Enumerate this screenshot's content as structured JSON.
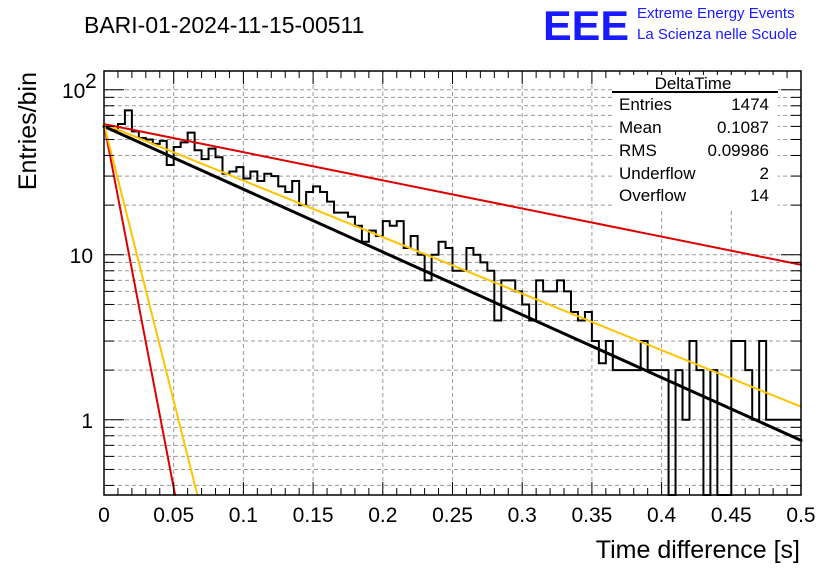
{
  "chart_data": {
    "type": "histogram",
    "title": "BARI-01-2024-11-15-00511",
    "xlabel": "Time difference [s]",
    "ylabel": "Entries/bin",
    "xlim": [
      0,
      0.5
    ],
    "ylim": [
      0.35,
      130
    ],
    "yscale": "log",
    "grid": true,
    "x_ticks": [
      "0",
      "0.05",
      "0.1",
      "0.15",
      "0.2",
      "0.25",
      "0.3",
      "0.35",
      "0.4",
      "0.45",
      "0.5"
    ],
    "y_ticks": [
      {
        "value": 1,
        "label": "1"
      },
      {
        "value": 10,
        "label": "10"
      },
      {
        "value": 100,
        "label": "10",
        "exponent": "2"
      }
    ],
    "bin_width": 0.005,
    "histogram": {
      "name": "DeltaTime",
      "color": "#000000",
      "values": [
        60,
        57,
        62,
        75,
        56,
        51,
        50,
        47,
        49,
        35,
        45,
        48,
        55,
        43,
        38,
        44,
        39,
        31,
        32,
        34,
        29,
        32,
        28,
        31,
        30,
        26,
        24,
        28,
        20,
        24,
        26,
        24,
        21,
        18,
        18,
        17,
        15,
        12,
        14,
        13,
        16,
        15,
        16,
        11,
        13,
        10,
        7,
        10,
        12,
        11,
        8,
        8,
        11,
        10,
        9,
        8,
        4,
        7,
        7,
        6,
        5,
        4,
        7,
        6,
        6,
        7,
        6,
        4.5,
        4,
        4.5,
        3,
        2.2,
        3,
        2,
        2,
        2,
        2,
        3,
        2,
        2,
        2,
        0.3,
        2,
        1,
        3,
        2,
        0.3,
        2,
        0.3,
        0.3,
        3,
        3,
        2,
        1,
        3,
        1,
        1,
        1,
        1,
        1
      ]
    },
    "fits": [
      {
        "name": "black-fit",
        "color": "#000000",
        "y0": 60,
        "y_end": 0.75,
        "x_end": 0.5,
        "width": 3
      },
      {
        "name": "yellow-fit-slow",
        "color": "#ffc400",
        "y0": 62,
        "y_end": 1.2,
        "x_end": 0.5,
        "width": 2
      },
      {
        "name": "red-fit-slow",
        "color": "#dd0000",
        "y0": 62,
        "y_end": 8.7,
        "x_end": 0.5,
        "width": 2
      },
      {
        "name": "red-fit-fast",
        "color": "#dd0000",
        "y0": 62,
        "y_end": 0.35,
        "x_end": 0.051,
        "width": 2
      },
      {
        "name": "yellow-fit-fast",
        "color": "#ffc400",
        "y0": 62,
        "y_end": 0.35,
        "x_end": 0.067,
        "width": 2
      }
    ]
  },
  "stats_box": {
    "title": "DeltaTime",
    "rows": [
      {
        "label": "Entries",
        "value": "1474"
      },
      {
        "label": "Mean",
        "value": "0.1087"
      },
      {
        "label": "RMS",
        "value": "0.09986"
      },
      {
        "label": "Underflow",
        "value": "2"
      },
      {
        "label": "Overflow",
        "value": "14"
      }
    ]
  },
  "logo": {
    "mark": "EEE",
    "line1": "Extreme Energy Events",
    "line2": "La Scienza nelle Scuole"
  }
}
